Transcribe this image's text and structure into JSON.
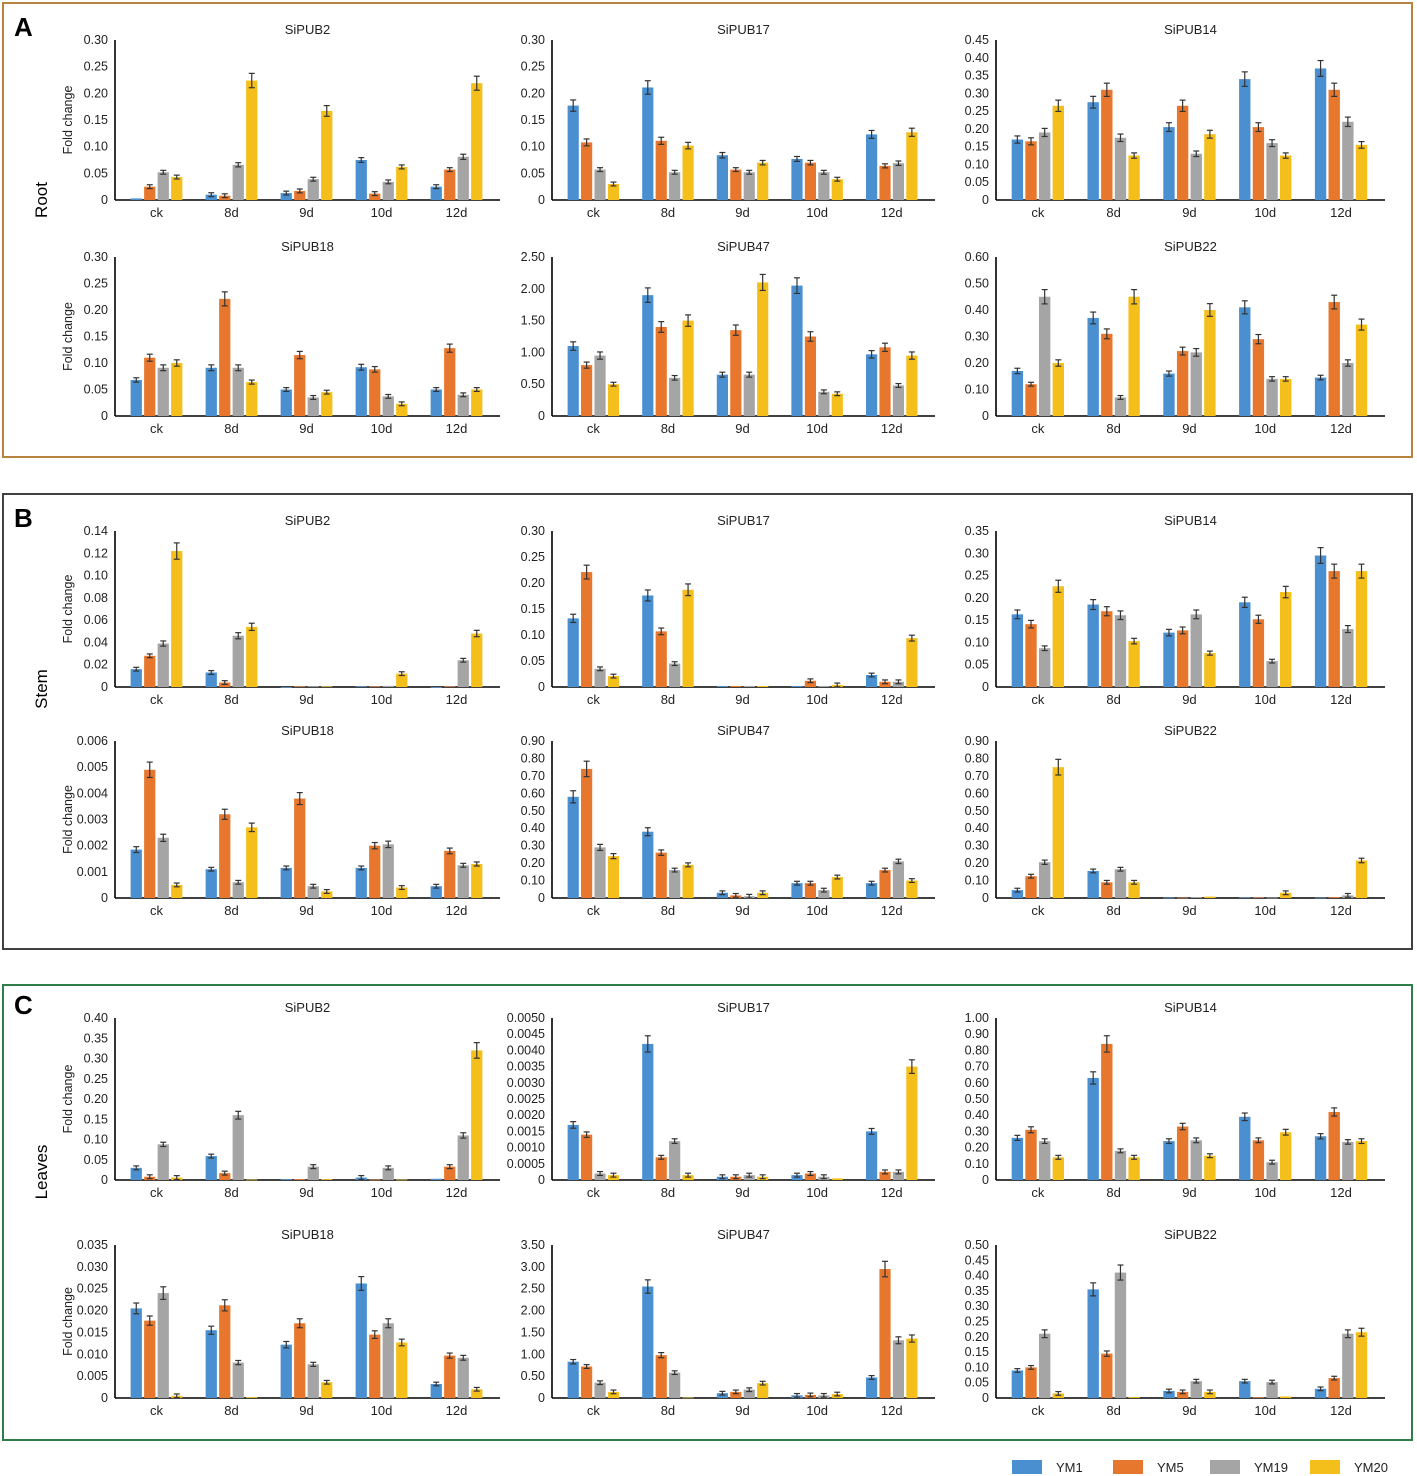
{
  "colors": {
    "YM1": "#4A8FD0",
    "YM5": "#E8772E",
    "YM19": "#A5A5A5",
    "YM20": "#F5BF1B",
    "panel_A_border": "#B8833E",
    "panel_B_border": "#404040",
    "panel_C_border": "#2E7D4A",
    "error_bar": "#333333"
  },
  "legend": [
    "YM1",
    "YM5",
    "YM19",
    "YM20"
  ],
  "y_axis_label": "Fold change",
  "categories": [
    "ck",
    "8d",
    "9d",
    "10d",
    "12d"
  ],
  "panels": [
    {
      "letter": "A",
      "tissue": "Root"
    },
    {
      "letter": "B",
      "tissue": "Stem"
    },
    {
      "letter": "C",
      "tissue": "Leaves"
    }
  ],
  "chart_data": [
    {
      "panel": "A",
      "title": "SiPUB2",
      "type": "bar",
      "ticks": [
        "0",
        "0.05",
        "0.10",
        "0.15",
        "0.20",
        "0.25",
        "0.30"
      ],
      "ylim": [
        0,
        0.3
      ],
      "values": [
        [
          0.003,
          0.025,
          0.052,
          0.043
        ],
        [
          0.01,
          0.008,
          0.066,
          0.224
        ],
        [
          0.013,
          0.017,
          0.039,
          0.167
        ],
        [
          0.075,
          0.012,
          0.034,
          0.062
        ],
        [
          0.025,
          0.057,
          0.081,
          0.219
        ]
      ]
    },
    {
      "panel": "A",
      "title": "SiPUB17",
      "type": "bar",
      "ticks": [
        "0",
        "0.05",
        "0.10",
        "0.15",
        "0.20",
        "0.25",
        "0.30"
      ],
      "ylim": [
        0,
        0.3
      ],
      "values": [
        [
          0.177,
          0.108,
          0.057,
          0.03
        ],
        [
          0.211,
          0.111,
          0.052,
          0.102
        ],
        [
          0.084,
          0.057,
          0.052,
          0.07
        ],
        [
          0.077,
          0.07,
          0.052,
          0.039
        ],
        [
          0.123,
          0.064,
          0.069,
          0.127
        ]
      ]
    },
    {
      "panel": "A",
      "title": "SiPUB14",
      "type": "bar",
      "ticks": [
        "0",
        "0.05",
        "0.10",
        "0.15",
        "0.20",
        "0.25",
        "0.30",
        "0.35",
        "0.40",
        "0.45"
      ],
      "ylim": [
        0,
        0.45
      ],
      "values": [
        [
          0.17,
          0.165,
          0.19,
          0.265
        ],
        [
          0.275,
          0.31,
          0.175,
          0.125
        ],
        [
          0.205,
          0.265,
          0.13,
          0.185
        ],
        [
          0.34,
          0.205,
          0.16,
          0.125
        ],
        [
          0.37,
          0.31,
          0.22,
          0.155
        ]
      ]
    },
    {
      "panel": "A",
      "title": "SiPUB18",
      "type": "bar",
      "ticks": [
        "0",
        "0.05",
        "0.10",
        "0.15",
        "0.20",
        "0.25",
        "0.30"
      ],
      "ylim": [
        0,
        0.3
      ],
      "values": [
        [
          0.068,
          0.11,
          0.091,
          0.1
        ],
        [
          0.091,
          0.221,
          0.091,
          0.064
        ],
        [
          0.05,
          0.115,
          0.035,
          0.045
        ],
        [
          0.092,
          0.088,
          0.037,
          0.023
        ],
        [
          0.05,
          0.128,
          0.04,
          0.05
        ]
      ]
    },
    {
      "panel": "A",
      "title": "SiPUB47",
      "type": "bar",
      "ticks": [
        "0",
        "0.50",
        "1.00",
        "1.50",
        "2.00",
        "2.50"
      ],
      "ylim": [
        0,
        2.5
      ],
      "values": [
        [
          1.1,
          0.8,
          0.95,
          0.5
        ],
        [
          1.9,
          1.4,
          0.6,
          1.5
        ],
        [
          0.65,
          1.35,
          0.65,
          2.1
        ],
        [
          2.05,
          1.25,
          0.38,
          0.35
        ],
        [
          0.97,
          1.08,
          0.48,
          0.95
        ]
      ]
    },
    {
      "panel": "A",
      "title": "SiPUB22",
      "type": "bar",
      "ticks": [
        "0",
        "0.10",
        "0.20",
        "0.30",
        "0.40",
        "0.50",
        "0.60"
      ],
      "ylim": [
        0,
        0.6
      ],
      "values": [
        [
          0.17,
          0.12,
          0.45,
          0.2
        ],
        [
          0.37,
          0.31,
          0.07,
          0.45
        ],
        [
          0.16,
          0.245,
          0.24,
          0.4
        ],
        [
          0.41,
          0.29,
          0.14,
          0.14
        ],
        [
          0.145,
          0.43,
          0.2,
          0.345
        ]
      ]
    },
    {
      "panel": "B",
      "title": "SiPUB2",
      "type": "bar",
      "ticks": [
        "0",
        "0.02",
        "0.04",
        "0.06",
        "0.08",
        "0.10",
        "0.12",
        "0.14"
      ],
      "ylim": [
        0,
        0.14
      ],
      "values": [
        [
          0.016,
          0.028,
          0.039,
          0.122
        ],
        [
          0.013,
          0.004,
          0.046,
          0.054
        ],
        [
          0,
          0.0005,
          0.0005,
          0.0005
        ],
        [
          0.0005,
          0.0005,
          0.001,
          0.012
        ],
        [
          0,
          0.0005,
          0.024,
          0.048
        ]
      ]
    },
    {
      "panel": "B",
      "title": "SiPUB17",
      "type": "bar",
      "ticks": [
        "0",
        "0.05",
        "0.10",
        "0.15",
        "0.20",
        "0.25",
        "0.30"
      ],
      "ylim": [
        0,
        0.3
      ],
      "values": [
        [
          0.132,
          0.221,
          0.035,
          0.021
        ],
        [
          0.176,
          0.107,
          0.045,
          0.187
        ],
        [
          0.002,
          0.002,
          0.002,
          0.002
        ],
        [
          0.002,
          0.012,
          0.002,
          0.004
        ],
        [
          0.023,
          0.01,
          0.01,
          0.094
        ]
      ]
    },
    {
      "panel": "B",
      "title": "SiPUB14",
      "type": "bar",
      "ticks": [
        "0",
        "0.05",
        "0.10",
        "0.15",
        "0.20",
        "0.25",
        "0.30",
        "0.35"
      ],
      "ylim": [
        0,
        0.35
      ],
      "values": [
        [
          0.163,
          0.141,
          0.087,
          0.226
        ],
        [
          0.185,
          0.17,
          0.161,
          0.103
        ],
        [
          0.122,
          0.127,
          0.163,
          0.076
        ],
        [
          0.19,
          0.152,
          0.058,
          0.213
        ],
        [
          0.295,
          0.26,
          0.13,
          0.26
        ]
      ]
    },
    {
      "panel": "B",
      "title": "SiPUB18",
      "type": "bar",
      "ticks": [
        "0",
        "0.001",
        "0.002",
        "0.003",
        "0.004",
        "0.005",
        "0.006"
      ],
      "ylim": [
        0,
        0.006
      ],
      "values": [
        [
          0.00185,
          0.0049,
          0.0023,
          0.0005
        ],
        [
          0.0011,
          0.0032,
          0.0006,
          0.0027
        ],
        [
          0.00115,
          0.0038,
          0.00045,
          0.00025
        ],
        [
          0.00115,
          0.002,
          0.00205,
          0.0004
        ],
        [
          0.00045,
          0.0018,
          0.00125,
          0.0013
        ]
      ]
    },
    {
      "panel": "B",
      "title": "SiPUB47",
      "type": "bar",
      "ticks": [
        "0",
        "0.10",
        "0.20",
        "0.30",
        "0.40",
        "0.50",
        "0.60",
        "0.70",
        "0.80",
        "0.90"
      ],
      "ylim": [
        0,
        0.9
      ],
      "values": [
        [
          0.58,
          0.74,
          0.29,
          0.24
        ],
        [
          0.38,
          0.26,
          0.16,
          0.19
        ],
        [
          0.03,
          0.015,
          0.01,
          0.03
        ],
        [
          0.085,
          0.085,
          0.045,
          0.12
        ],
        [
          0.085,
          0.16,
          0.21,
          0.1
        ]
      ]
    },
    {
      "panel": "B",
      "title": "SiPUB22",
      "type": "bar",
      "ticks": [
        "0",
        "0.10",
        "0.20",
        "0.30",
        "0.40",
        "0.50",
        "0.60",
        "0.70",
        "0.80",
        "0.90"
      ],
      "ylim": [
        0,
        0.9
      ],
      "values": [
        [
          0.045,
          0.125,
          0.205,
          0.75
        ],
        [
          0.155,
          0.09,
          0.165,
          0.09
        ],
        [
          0.002,
          0.002,
          0.005,
          0.008
        ],
        [
          0.003,
          0.003,
          0.002,
          0.03
        ],
        [
          0.002,
          0.005,
          0.015,
          0.215
        ]
      ]
    },
    {
      "panel": "C",
      "title": "SiPUB2",
      "type": "bar",
      "ticks": [
        "0",
        "0.05",
        "0.10",
        "0.15",
        "0.20",
        "0.25",
        "0.30",
        "0.35",
        "0.40"
      ],
      "ylim": [
        0,
        0.4
      ],
      "values": [
        [
          0.03,
          0.008,
          0.088,
          0.006
        ],
        [
          0.059,
          0.017,
          0.16,
          0.001
        ],
        [
          0.002,
          0.002,
          0.033,
          0.002
        ],
        [
          0.006,
          0.001,
          0.03,
          0.001
        ],
        [
          0.003,
          0.033,
          0.11,
          0.32
        ]
      ]
    },
    {
      "panel": "C",
      "title": "SiPUB17",
      "type": "bar",
      "ticks": [
        "0",
        "0.0005",
        "0.0010",
        "0.0015",
        "0.0020",
        "0.0025",
        "0.0030",
        "0.0035",
        "0.0040",
        "0.0045",
        "0.0050"
      ],
      "ylim": [
        0,
        0.005
      ],
      "values": [
        [
          0.0017,
          0.0014,
          0.0002,
          0.00015
        ],
        [
          0.0042,
          0.0007,
          0.0012,
          0.00015
        ],
        [
          0.0001,
          0.0001,
          0.00015,
          0.0001
        ],
        [
          0.00015,
          0.0002,
          0.0001,
          5e-05
        ],
        [
          0.0015,
          0.00025,
          0.00025,
          0.0035
        ]
      ]
    },
    {
      "panel": "C",
      "title": "SiPUB14",
      "type": "bar",
      "ticks": [
        "0",
        "0.10",
        "0.20",
        "0.30",
        "0.40",
        "0.50",
        "0.60",
        "0.70",
        "0.80",
        "0.90",
        "1.00"
      ],
      "ylim": [
        0,
        1.0
      ],
      "values": [
        [
          0.26,
          0.31,
          0.24,
          0.14
        ],
        [
          0.63,
          0.84,
          0.18,
          0.14
        ],
        [
          0.24,
          0.33,
          0.245,
          0.15
        ],
        [
          0.39,
          0.245,
          0.11,
          0.295
        ],
        [
          0.27,
          0.42,
          0.235,
          0.24
        ]
      ]
    },
    {
      "panel": "C",
      "title": "SiPUB18",
      "type": "bar",
      "ticks": [
        "0",
        "0.005",
        "0.010",
        "0.015",
        "0.020",
        "0.025",
        "0.030",
        "0.035"
      ],
      "ylim": [
        0,
        0.035
      ],
      "values": [
        [
          0.0205,
          0.0177,
          0.024,
          0.0005
        ],
        [
          0.0155,
          0.0212,
          0.0081,
          0.0002
        ],
        [
          0.0122,
          0.0171,
          0.0077,
          0.0036
        ],
        [
          0.0262,
          0.0145,
          0.0171,
          0.0127
        ],
        [
          0.0032,
          0.0097,
          0.0092,
          0.002
        ]
      ]
    },
    {
      "panel": "C",
      "title": "SiPUB47",
      "type": "bar",
      "ticks": [
        "0",
        "0.50",
        "1.00",
        "1.50",
        "2.00",
        "2.50",
        "3.00",
        "3.50"
      ],
      "ylim": [
        0,
        3.5
      ],
      "values": [
        [
          0.83,
          0.72,
          0.35,
          0.14
        ],
        [
          2.55,
          0.98,
          0.58,
          0.01
        ],
        [
          0.11,
          0.14,
          0.19,
          0.34
        ],
        [
          0.06,
          0.07,
          0.06,
          0.09
        ],
        [
          0.47,
          2.95,
          1.32,
          1.36
        ]
      ]
    },
    {
      "panel": "C",
      "title": "SiPUB22",
      "type": "bar",
      "ticks": [
        "0",
        "0.05",
        "0.10",
        "0.15",
        "0.20",
        "0.25",
        "0.30",
        "0.35",
        "0.40",
        "0.45",
        "0.50"
      ],
      "ylim": [
        0,
        0.5
      ],
      "values": [
        [
          0.09,
          0.1,
          0.21,
          0.015
        ],
        [
          0.355,
          0.145,
          0.41,
          0.003
        ],
        [
          0.023,
          0.02,
          0.055,
          0.02
        ],
        [
          0.055,
          0.002,
          0.052,
          0.005
        ],
        [
          0.03,
          0.065,
          0.21,
          0.215
        ]
      ]
    }
  ]
}
